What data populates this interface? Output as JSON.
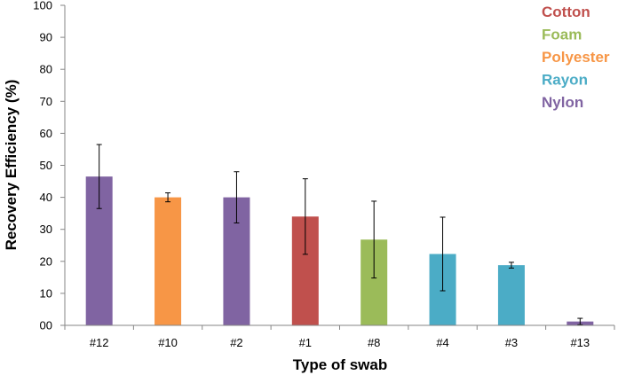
{
  "chart_data": {
    "type": "bar",
    "xlabel": "Type of swab",
    "ylabel": "Recovery Efficiency (%)",
    "ylim": [
      0,
      100
    ],
    "yticks": [
      "00",
      "10",
      "20",
      "30",
      "40",
      "50",
      "60",
      "70",
      "80",
      "90",
      "100"
    ],
    "ytick_values": [
      0,
      10,
      20,
      30,
      40,
      50,
      60,
      70,
      80,
      90,
      100
    ],
    "categories": [
      "#12",
      "#10",
      "#2",
      "#1",
      "#8",
      "#4",
      "#3",
      "#13"
    ],
    "values": [
      46.5,
      40.0,
      40.0,
      34.0,
      26.8,
      22.3,
      18.8,
      1.2
    ],
    "error": [
      10.0,
      1.4,
      8.0,
      11.8,
      12.0,
      11.5,
      0.9,
      1.0
    ],
    "bar_material": [
      "Nylon",
      "Polyester",
      "Nylon",
      "Cotton",
      "Foam",
      "Rayon",
      "Rayon",
      "Nylon"
    ],
    "legend": [
      {
        "label": "Cotton",
        "color": "#c0504d"
      },
      {
        "label": "Foam",
        "color": "#9bbb59"
      },
      {
        "label": "Polyester",
        "color": "#f79646"
      },
      {
        "label": "Rayon",
        "color": "#4bacc6"
      },
      {
        "label": "Nylon",
        "color": "#8064a2"
      }
    ],
    "legend_position": "top-right",
    "grid": false
  }
}
